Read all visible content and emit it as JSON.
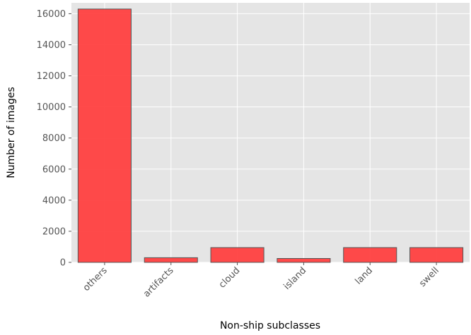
{
  "chart_data": {
    "type": "bar",
    "title": "",
    "xlabel": "Non-ship subclasses",
    "ylabel": "Number of images",
    "categories": [
      "others",
      "artifacts",
      "cloud",
      "island",
      "land",
      "swell"
    ],
    "values": [
      16300,
      300,
      950,
      250,
      950,
      950
    ],
    "ylim": [
      0,
      16700
    ],
    "yticks": [
      0,
      2000,
      4000,
      6000,
      8000,
      10000,
      12000,
      14000,
      16000
    ],
    "grid": true,
    "style": "ggplot",
    "bar_color": "#ff4040",
    "bar_edge_color": "#555555",
    "background_color": "#e5e5e5",
    "grid_color": "#ffffff"
  }
}
